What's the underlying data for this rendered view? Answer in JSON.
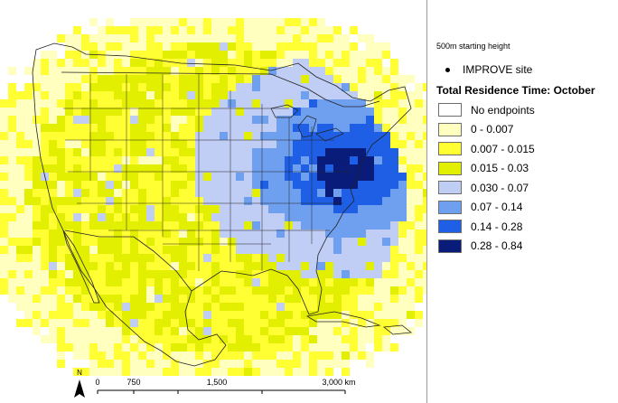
{
  "legend": {
    "height_label": "500m starting height",
    "site_label": "IMPROVE site",
    "title": "Total Residence Time: October",
    "classes": [
      {
        "label": "No endpoints",
        "color": "#ffffff"
      },
      {
        "label": "0 - 0.007",
        "color": "#ffffc0"
      },
      {
        "label": "0.007 - 0.015",
        "color": "#ffff33"
      },
      {
        "label": "0.015 - 0.03",
        "color": "#e2ef00"
      },
      {
        "label": "0.030 - 0.07",
        "color": "#c0cdf4"
      },
      {
        "label": "0.07 - 0.14",
        "color": "#6fa0f0"
      },
      {
        "label": "0.14 - 0.28",
        "color": "#1e5fe6"
      },
      {
        "label": "0.28 - 0.84",
        "color": "#0a1c7a"
      }
    ]
  },
  "scale_bar": {
    "ticks": [
      "0",
      "750",
      "1,500",
      "3,000 km"
    ]
  },
  "north_label": "N",
  "colors": {
    "land_outline": "#222222",
    "legend_border": "#9a9a9a"
  }
}
